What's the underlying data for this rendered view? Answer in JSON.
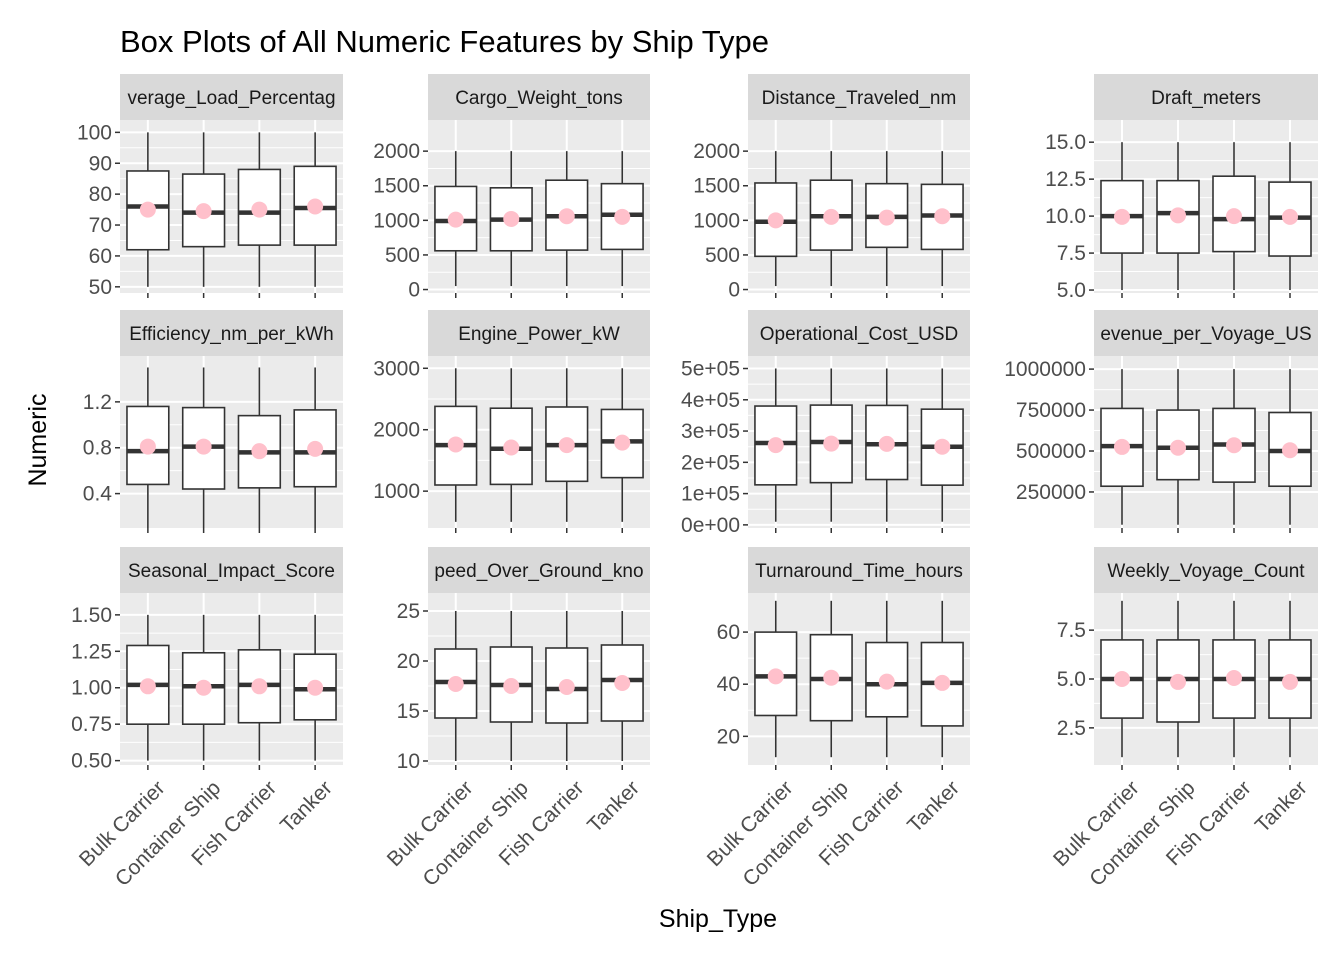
{
  "chart_data": {
    "type": "box",
    "title": "Box Plots of All Numeric Features by Ship Type",
    "xlabel": "Ship_Type",
    "ylabel": "Numeric",
    "categories": [
      "Bulk Carrier",
      "Container Ship",
      "Fish Carrier",
      "Tanker"
    ],
    "colors": {
      "panel_bg": "#ebebeb",
      "strip_bg": "#d9d9d9",
      "grid": "#ffffff",
      "box_fill": "#ffffff",
      "box_line": "#333333",
      "mean_point": "#ffc0cb"
    },
    "facets": [
      {
        "title": "Average_Load_Percentage",
        "strip_label": "verage_Load_Percentag",
        "ylim": [
          48,
          104
        ],
        "ticks": [
          50,
          60,
          70,
          80,
          90,
          100
        ],
        "tick_labels": [
          "50",
          "60",
          "70",
          "80",
          "90",
          "100"
        ],
        "boxes": [
          {
            "min": 50,
            "q1": 62,
            "median": 76,
            "q3": 87.5,
            "max": 100,
            "mean": 75
          },
          {
            "min": 50,
            "q1": 63,
            "median": 74,
            "q3": 86.5,
            "max": 100,
            "mean": 74.5
          },
          {
            "min": 50,
            "q1": 63.5,
            "median": 74,
            "q3": 88,
            "max": 100,
            "mean": 75
          },
          {
            "min": 50,
            "q1": 63.5,
            "median": 75.5,
            "q3": 89,
            "max": 100,
            "mean": 76
          }
        ]
      },
      {
        "title": "Cargo_Weight_tons",
        "strip_label": "Cargo_Weight_tons",
        "ylim": [
          -50,
          2450
        ],
        "ticks": [
          0,
          500,
          1000,
          1500,
          2000
        ],
        "tick_labels": [
          "0",
          "500",
          "1000",
          "1500",
          "2000"
        ],
        "boxes": [
          {
            "min": 50,
            "q1": 560,
            "median": 990,
            "q3": 1490,
            "max": 2000,
            "mean": 1010
          },
          {
            "min": 50,
            "q1": 560,
            "median": 1010,
            "q3": 1470,
            "max": 2000,
            "mean": 1020
          },
          {
            "min": 50,
            "q1": 570,
            "median": 1060,
            "q3": 1580,
            "max": 2000,
            "mean": 1060
          },
          {
            "min": 50,
            "q1": 580,
            "median": 1080,
            "q3": 1530,
            "max": 2000,
            "mean": 1050
          }
        ]
      },
      {
        "title": "Distance_Traveled_nm",
        "strip_label": "Distance_Traveled_nm",
        "ylim": [
          -50,
          2450
        ],
        "ticks": [
          0,
          500,
          1000,
          1500,
          2000
        ],
        "tick_labels": [
          "0",
          "500",
          "1000",
          "1500",
          "2000"
        ],
        "boxes": [
          {
            "min": 50,
            "q1": 480,
            "median": 980,
            "q3": 1540,
            "max": 2000,
            "mean": 1000
          },
          {
            "min": 50,
            "q1": 570,
            "median": 1060,
            "q3": 1580,
            "max": 2000,
            "mean": 1050
          },
          {
            "min": 50,
            "q1": 610,
            "median": 1050,
            "q3": 1530,
            "max": 2000,
            "mean": 1040
          },
          {
            "min": 50,
            "q1": 580,
            "median": 1070,
            "q3": 1520,
            "max": 2000,
            "mean": 1060
          }
        ]
      },
      {
        "title": "Draft_meters",
        "strip_label": "Draft_meters",
        "ylim": [
          4.8,
          16.5
        ],
        "ticks": [
          5.0,
          7.5,
          10.0,
          12.5,
          15.0
        ],
        "tick_labels": [
          "5.0",
          "7.5",
          "10.0",
          "12.5",
          "15.0"
        ],
        "boxes": [
          {
            "min": 5.0,
            "q1": 7.5,
            "median": 10.0,
            "q3": 12.4,
            "max": 15.0,
            "mean": 9.95
          },
          {
            "min": 5.0,
            "q1": 7.5,
            "median": 10.2,
            "q3": 12.4,
            "max": 15.0,
            "mean": 10.05
          },
          {
            "min": 5.0,
            "q1": 7.6,
            "median": 9.8,
            "q3": 12.7,
            "max": 15.0,
            "mean": 10.0
          },
          {
            "min": 5.0,
            "q1": 7.3,
            "median": 9.9,
            "q3": 12.3,
            "max": 15.0,
            "mean": 9.95
          }
        ]
      },
      {
        "title": "Efficiency_nm_per_kWh",
        "strip_label": "Efficiency_nm_per_kWh",
        "ylim": [
          0.1,
          1.6
        ],
        "ticks": [
          0.4,
          0.8,
          1.2
        ],
        "tick_labels": [
          "0.4",
          "0.8",
          "1.2"
        ],
        "boxes": [
          {
            "min": 0.1,
            "q1": 0.48,
            "median": 0.77,
            "q3": 1.16,
            "max": 1.5,
            "mean": 0.81
          },
          {
            "min": 0.1,
            "q1": 0.44,
            "median": 0.81,
            "q3": 1.15,
            "max": 1.5,
            "mean": 0.81
          },
          {
            "min": 0.1,
            "q1": 0.45,
            "median": 0.76,
            "q3": 1.08,
            "max": 1.5,
            "mean": 0.77
          },
          {
            "min": 0.1,
            "q1": 0.46,
            "median": 0.76,
            "q3": 1.13,
            "max": 1.5,
            "mean": 0.79
          }
        ]
      },
      {
        "title": "Engine_Power_kW",
        "strip_label": "Engine_Power_kW",
        "ylim": [
          400,
          3200
        ],
        "ticks": [
          1000,
          2000,
          3000
        ],
        "tick_labels": [
          "1000",
          "2000",
          "3000"
        ],
        "boxes": [
          {
            "min": 500,
            "q1": 1100,
            "median": 1750,
            "q3": 2380,
            "max": 3000,
            "mean": 1760
          },
          {
            "min": 500,
            "q1": 1110,
            "median": 1690,
            "q3": 2350,
            "max": 3000,
            "mean": 1710
          },
          {
            "min": 500,
            "q1": 1160,
            "median": 1750,
            "q3": 2370,
            "max": 3000,
            "mean": 1750
          },
          {
            "min": 500,
            "q1": 1220,
            "median": 1810,
            "q3": 2330,
            "max": 3000,
            "mean": 1790
          }
        ]
      },
      {
        "title": "Operational_Cost_USD",
        "strip_label": "Operational_Cost_USD",
        "ylim": [
          -10000,
          540000
        ],
        "ticks": [
          0,
          100000,
          200000,
          300000,
          400000,
          500000
        ],
        "tick_labels": [
          "0e+00",
          "1e+05",
          "2e+05",
          "3e+05",
          "4e+05",
          "5e+05"
        ],
        "boxes": [
          {
            "min": 10000,
            "q1": 128000,
            "median": 262000,
            "q3": 380000,
            "max": 500000,
            "mean": 255000
          },
          {
            "min": 10000,
            "q1": 135000,
            "median": 265000,
            "q3": 383000,
            "max": 500000,
            "mean": 260000
          },
          {
            "min": 10000,
            "q1": 145000,
            "median": 258000,
            "q3": 382000,
            "max": 500000,
            "mean": 259000
          },
          {
            "min": 10000,
            "q1": 127000,
            "median": 250000,
            "q3": 370000,
            "max": 500000,
            "mean": 250000
          }
        ]
      },
      {
        "title": "Revenue_per_Voyage_USD",
        "strip_label": "evenue_per_Voyage_US",
        "ylim": [
          30000,
          1080000
        ],
        "ticks": [
          250000,
          500000,
          750000,
          1000000
        ],
        "tick_labels": [
          "250000",
          "500000",
          "750000",
          "1000000"
        ],
        "boxes": [
          {
            "min": 50000,
            "q1": 285000,
            "median": 530000,
            "q3": 760000,
            "max": 1000000,
            "mean": 525000
          },
          {
            "min": 50000,
            "q1": 325000,
            "median": 520000,
            "q3": 750000,
            "max": 1000000,
            "mean": 520000
          },
          {
            "min": 50000,
            "q1": 310000,
            "median": 540000,
            "q3": 760000,
            "max": 1000000,
            "mean": 535000
          },
          {
            "min": 50000,
            "q1": 285000,
            "median": 500000,
            "q3": 735000,
            "max": 1000000,
            "mean": 505000
          }
        ]
      },
      {
        "title": "Seasonal_Impact_Score",
        "strip_label": "Seasonal_Impact_Score",
        "ylim": [
          0.47,
          1.65
        ],
        "ticks": [
          0.5,
          0.75,
          1.0,
          1.25,
          1.5
        ],
        "tick_labels": [
          "0.50",
          "0.75",
          "1.00",
          "1.25",
          "1.50"
        ],
        "boxes": [
          {
            "min": 0.5,
            "q1": 0.75,
            "median": 1.02,
            "q3": 1.29,
            "max": 1.5,
            "mean": 1.01
          },
          {
            "min": 0.5,
            "q1": 0.75,
            "median": 1.01,
            "q3": 1.24,
            "max": 1.5,
            "mean": 1.0
          },
          {
            "min": 0.5,
            "q1": 0.76,
            "median": 1.02,
            "q3": 1.26,
            "max": 1.5,
            "mean": 1.01
          },
          {
            "min": 0.5,
            "q1": 0.78,
            "median": 0.99,
            "q3": 1.23,
            "max": 1.5,
            "mean": 1.0
          }
        ]
      },
      {
        "title": "Speed_Over_Ground_knots",
        "strip_label": "peed_Over_Ground_kno",
        "ylim": [
          9.6,
          26.8
        ],
        "ticks": [
          10,
          15,
          20,
          25
        ],
        "tick_labels": [
          "10",
          "15",
          "20",
          "25"
        ],
        "boxes": [
          {
            "min": 10,
            "q1": 14.3,
            "median": 17.9,
            "q3": 21.2,
            "max": 25,
            "mean": 17.7
          },
          {
            "min": 10,
            "q1": 13.9,
            "median": 17.6,
            "q3": 21.4,
            "max": 25,
            "mean": 17.5
          },
          {
            "min": 10,
            "q1": 13.8,
            "median": 17.2,
            "q3": 21.3,
            "max": 25,
            "mean": 17.4
          },
          {
            "min": 10,
            "q1": 14.0,
            "median": 18.1,
            "q3": 21.6,
            "max": 25,
            "mean": 17.8
          }
        ]
      },
      {
        "title": "Turnaround_Time_hours",
        "strip_label": "Turnaround_Time_hours",
        "ylim": [
          9,
          75
        ],
        "ticks": [
          20,
          40,
          60
        ],
        "tick_labels": [
          "20",
          "40",
          "60"
        ],
        "boxes": [
          {
            "min": 12,
            "q1": 28,
            "median": 43,
            "q3": 60,
            "max": 72,
            "mean": 43
          },
          {
            "min": 12,
            "q1": 26,
            "median": 42,
            "q3": 59,
            "max": 72,
            "mean": 42.5
          },
          {
            "min": 12,
            "q1": 27.5,
            "median": 40,
            "q3": 56,
            "max": 72,
            "mean": 41
          },
          {
            "min": 12,
            "q1": 24,
            "median": 40.5,
            "q3": 56,
            "max": 72,
            "mean": 40.5
          }
        ]
      },
      {
        "title": "Weekly_Voyage_Count",
        "strip_label": "Weekly_Voyage_Count",
        "ylim": [
          0.6,
          9.4
        ],
        "ticks": [
          2.5,
          5.0,
          7.5
        ],
        "tick_labels": [
          "2.5",
          "5.0",
          "7.5"
        ],
        "boxes": [
          {
            "min": 1,
            "q1": 3,
            "median": 5,
            "q3": 7,
            "max": 9,
            "mean": 5.0
          },
          {
            "min": 1,
            "q1": 2.8,
            "median": 5,
            "q3": 7,
            "max": 9,
            "mean": 4.85
          },
          {
            "min": 1,
            "q1": 3,
            "median": 5,
            "q3": 7,
            "max": 9,
            "mean": 5.05
          },
          {
            "min": 1,
            "q1": 3,
            "median": 5,
            "q3": 7,
            "max": 9,
            "mean": 4.85
          }
        ]
      }
    ]
  }
}
